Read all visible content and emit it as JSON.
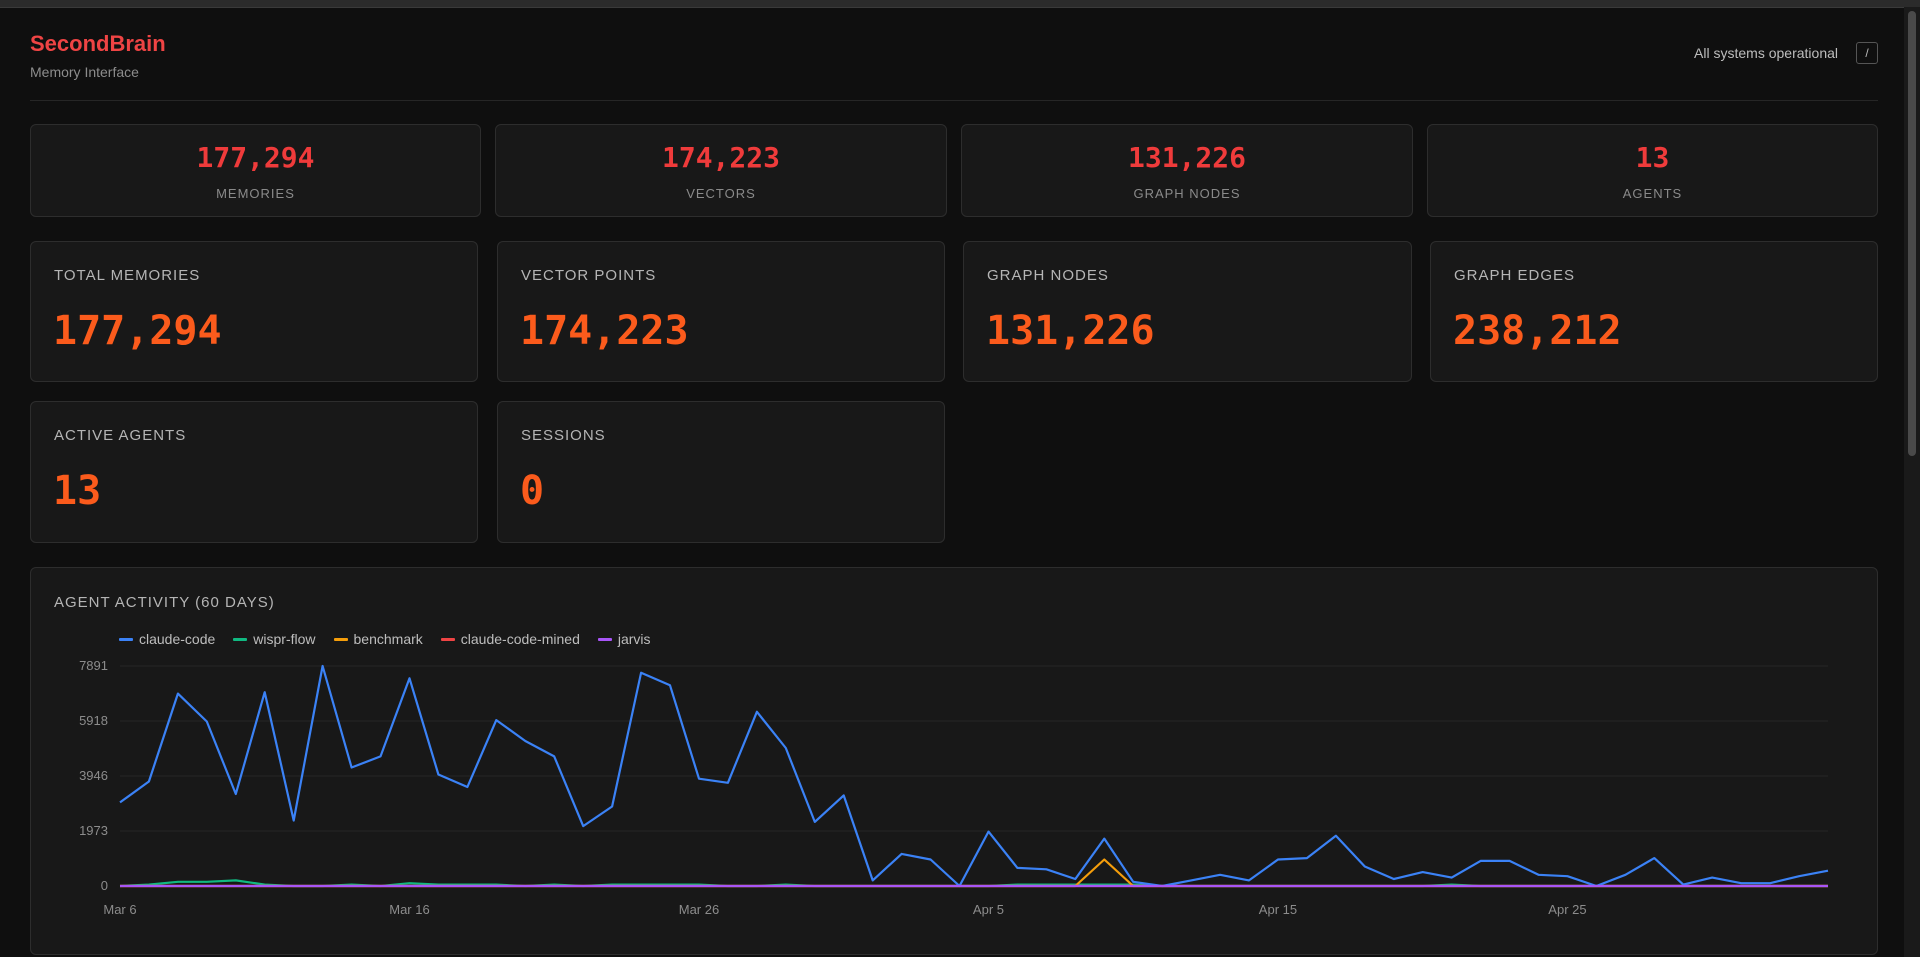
{
  "header": {
    "brand": "SecondBrain",
    "subtitle": "Memory Interface",
    "status": "All systems operational",
    "shortcut": "/"
  },
  "mini_stats": [
    {
      "value": "177,294",
      "label": "MEMORIES"
    },
    {
      "value": "174,223",
      "label": "VECTORS"
    },
    {
      "value": "131,226",
      "label": "GRAPH NODES"
    },
    {
      "value": "13",
      "label": "AGENTS"
    }
  ],
  "big_stats": [
    {
      "label": "TOTAL MEMORIES",
      "value": "177,294"
    },
    {
      "label": "VECTOR POINTS",
      "value": "174,223"
    },
    {
      "label": "GRAPH NODES",
      "value": "131,226"
    },
    {
      "label": "GRAPH EDGES",
      "value": "238,212"
    },
    {
      "label": "ACTIVE AGENTS",
      "value": "13"
    },
    {
      "label": "SESSIONS",
      "value": "0"
    }
  ],
  "chart_panel": {
    "title": "AGENT ACTIVITY (60 DAYS)"
  },
  "chart_data": {
    "type": "line",
    "title": "AGENT ACTIVITY (60 DAYS)",
    "ylim": [
      0,
      7891
    ],
    "yticks": [
      0,
      1973,
      3946,
      5918,
      7891
    ],
    "ytick_labels": [
      "0",
      "1973",
      "3946",
      "5918",
      "7891"
    ],
    "xtick_labels": [
      "Mar 6",
      "Mar 16",
      "Mar 26",
      "Apr 5",
      "Apr 15",
      "Apr 25"
    ],
    "x": [
      "Mar 6",
      "Mar 7",
      "Mar 8",
      "Mar 9",
      "Mar 10",
      "Mar 11",
      "Mar 12",
      "Mar 13",
      "Mar 14",
      "Mar 15",
      "Mar 16",
      "Mar 17",
      "Mar 18",
      "Mar 19",
      "Mar 20",
      "Mar 21",
      "Mar 22",
      "Mar 23",
      "Mar 24",
      "Mar 25",
      "Mar 26",
      "Mar 27",
      "Mar 28",
      "Mar 29",
      "Mar 30",
      "Mar 31",
      "Apr 1",
      "Apr 2",
      "Apr 3",
      "Apr 4",
      "Apr 5",
      "Apr 6",
      "Apr 7",
      "Apr 8",
      "Apr 9",
      "Apr 10",
      "Apr 11",
      "Apr 12",
      "Apr 13",
      "Apr 14",
      "Apr 15",
      "Apr 16",
      "Apr 17",
      "Apr 18",
      "Apr 19",
      "Apr 20",
      "Apr 21",
      "Apr 22",
      "Apr 23",
      "Apr 24",
      "Apr 25",
      "Apr 26",
      "Apr 27",
      "Apr 28",
      "Apr 29",
      "Apr 30",
      "May 1",
      "May 2",
      "May 3",
      "May 4"
    ],
    "legend_position": "top-left",
    "grid": true,
    "series": [
      {
        "name": "claude-code",
        "color": "#3b82f6",
        "values": [
          3000,
          3750,
          6900,
          5900,
          3300,
          6950,
          2350,
          7891,
          4250,
          4650,
          7450,
          4000,
          3550,
          5950,
          5200,
          4650,
          2150,
          2850,
          7650,
          7200,
          3850,
          3700,
          6250,
          4950,
          2300,
          3250,
          200,
          1150,
          950,
          0,
          1950,
          650,
          600,
          250,
          1700,
          150,
          0,
          200,
          400,
          200,
          950,
          1000,
          1800,
          700,
          250,
          500,
          300,
          900,
          900,
          400,
          350,
          0,
          400,
          1000,
          50,
          300,
          100,
          100,
          350,
          550
        ]
      },
      {
        "name": "wispr-flow",
        "color": "#10b981",
        "values": [
          0,
          50,
          150,
          150,
          200,
          50,
          0,
          0,
          50,
          0,
          100,
          50,
          50,
          50,
          0,
          50,
          0,
          50,
          50,
          50,
          50,
          0,
          0,
          50,
          0,
          0,
          0,
          0,
          0,
          0,
          0,
          50,
          50,
          50,
          50,
          50,
          0,
          0,
          0,
          0,
          0,
          0,
          0,
          0,
          0,
          0,
          50,
          0,
          0,
          0,
          0,
          0,
          0,
          0,
          0,
          0,
          0,
          0,
          0,
          0
        ]
      },
      {
        "name": "benchmark",
        "color": "#f59e0b",
        "values": [
          0,
          0,
          0,
          0,
          0,
          0,
          0,
          0,
          0,
          0,
          0,
          0,
          0,
          0,
          0,
          0,
          0,
          0,
          0,
          0,
          0,
          0,
          0,
          0,
          0,
          0,
          0,
          0,
          0,
          0,
          0,
          0,
          0,
          0,
          950,
          0,
          0,
          0,
          0,
          0,
          0,
          0,
          0,
          0,
          0,
          0,
          0,
          0,
          0,
          0,
          0,
          0,
          0,
          0,
          0,
          0,
          0,
          0,
          0,
          0
        ]
      },
      {
        "name": "claude-code-mined",
        "color": "#ef4444",
        "values": [
          0,
          0,
          0,
          0,
          0,
          0,
          0,
          0,
          0,
          0,
          0,
          0,
          0,
          0,
          0,
          0,
          0,
          0,
          0,
          0,
          0,
          0,
          0,
          0,
          0,
          0,
          0,
          0,
          0,
          0,
          0,
          0,
          0,
          0,
          0,
          0,
          0,
          0,
          0,
          0,
          0,
          0,
          0,
          0,
          0,
          0,
          0,
          0,
          0,
          0,
          0,
          0,
          0,
          0,
          0,
          0,
          0,
          0,
          0,
          0
        ]
      },
      {
        "name": "jarvis",
        "color": "#a855f7",
        "values": [
          0,
          0,
          0,
          0,
          0,
          0,
          0,
          0,
          0,
          0,
          0,
          0,
          0,
          0,
          0,
          0,
          0,
          0,
          0,
          0,
          0,
          0,
          0,
          0,
          0,
          0,
          0,
          0,
          0,
          0,
          0,
          0,
          0,
          0,
          0,
          0,
          0,
          0,
          0,
          0,
          0,
          0,
          0,
          0,
          0,
          0,
          0,
          0,
          0,
          0,
          0,
          0,
          0,
          0,
          0,
          0,
          0,
          0,
          0,
          0
        ]
      }
    ]
  }
}
